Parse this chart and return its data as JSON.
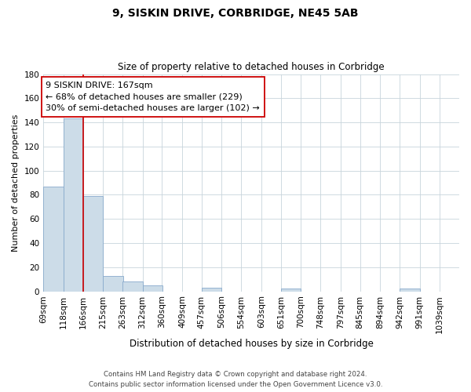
{
  "title": "9, SISKIN DRIVE, CORBRIDGE, NE45 5AB",
  "subtitle": "Size of property relative to detached houses in Corbridge",
  "xlabel": "Distribution of detached houses by size in Corbridge",
  "ylabel": "Number of detached properties",
  "bins": [
    69,
    118,
    166,
    215,
    263,
    312,
    360,
    409,
    457,
    506,
    554,
    603,
    651,
    700,
    748,
    797,
    845,
    894,
    942,
    991,
    1039
  ],
  "bin_labels": [
    "69sqm",
    "118sqm",
    "166sqm",
    "215sqm",
    "263sqm",
    "312sqm",
    "360sqm",
    "409sqm",
    "457sqm",
    "506sqm",
    "554sqm",
    "603sqm",
    "651sqm",
    "700sqm",
    "748sqm",
    "797sqm",
    "845sqm",
    "894sqm",
    "942sqm",
    "991sqm",
    "1039sqm"
  ],
  "counts": [
    87,
    143,
    79,
    13,
    8,
    5,
    0,
    0,
    3,
    0,
    0,
    0,
    2,
    0,
    0,
    0,
    0,
    0,
    2,
    0,
    0
  ],
  "bar_color": "#ccdce8",
  "bar_edge_color": "#88aacc",
  "property_line_x": 166,
  "property_line_color": "#cc0000",
  "annotation_text": "9 SISKIN DRIVE: 167sqm\n← 68% of detached houses are smaller (229)\n30% of semi-detached houses are larger (102) →",
  "annotation_box_color": "#ffffff",
  "annotation_box_edge_color": "#cc0000",
  "ylim": [
    0,
    180
  ],
  "yticks": [
    0,
    20,
    40,
    60,
    80,
    100,
    120,
    140,
    160,
    180
  ],
  "footer_line1": "Contains HM Land Registry data © Crown copyright and database right 2024.",
  "footer_line2": "Contains public sector information licensed under the Open Government Licence v3.0.",
  "background_color": "#ffffff",
  "grid_color": "#c8d4dc"
}
